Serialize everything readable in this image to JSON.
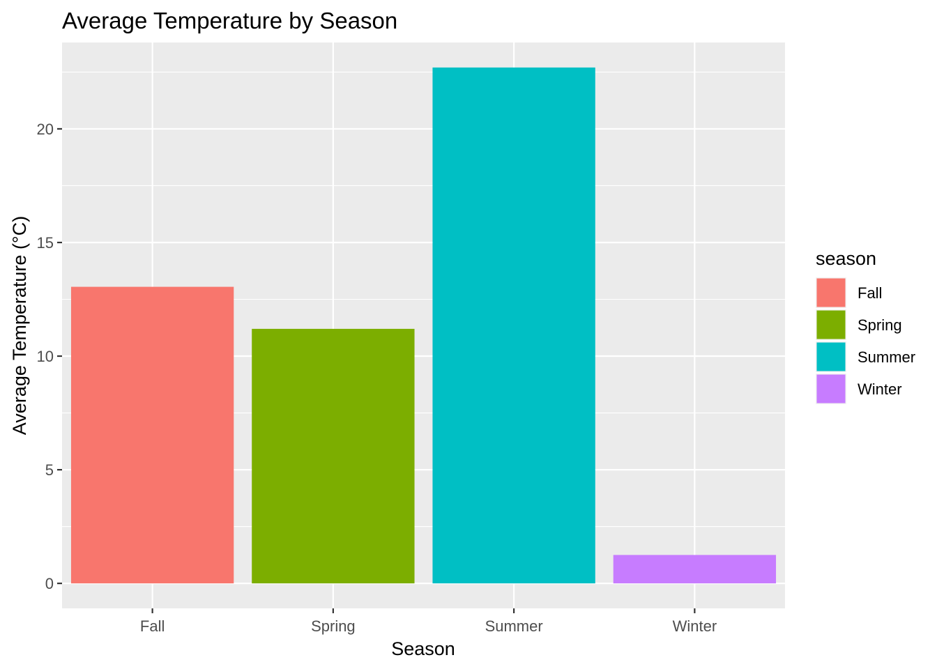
{
  "chart_data": {
    "type": "bar",
    "title": "Average Temperature by Season",
    "xlabel": "Season",
    "ylabel": "Average Temperature (°C)",
    "categories": [
      "Fall",
      "Spring",
      "Summer",
      "Winter"
    ],
    "values": [
      13.05,
      11.2,
      22.7,
      1.25
    ],
    "colors": [
      "#F8766D",
      "#7CAE00",
      "#00BFC4",
      "#C77CFF"
    ],
    "ylim": [
      -1.1,
      23.8
    ],
    "yticks": [
      0,
      5,
      10,
      15,
      20
    ],
    "ytick_labels": [
      "0",
      "5",
      "10",
      "15",
      "20"
    ],
    "grid": true,
    "legend": {
      "title": "season",
      "position": "right",
      "entries": [
        "Fall",
        "Spring",
        "Summer",
        "Winter"
      ]
    }
  }
}
